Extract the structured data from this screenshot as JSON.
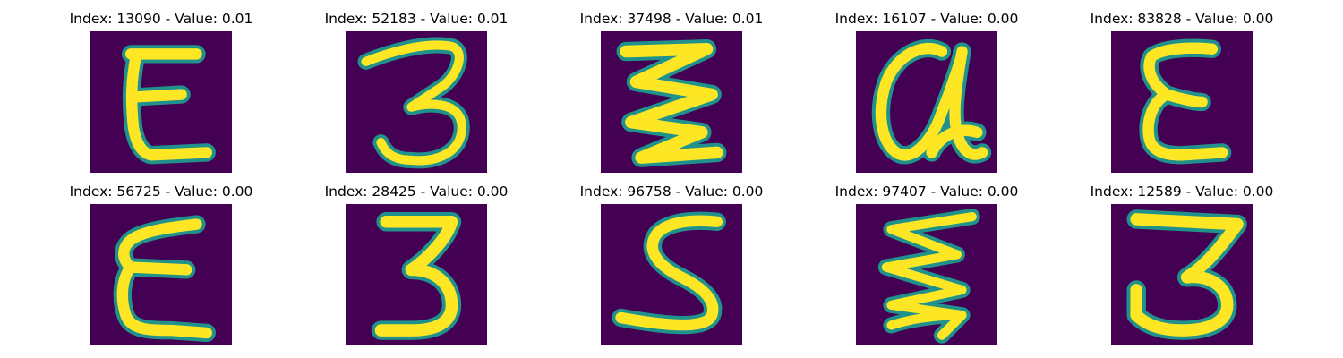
{
  "colors": {
    "background": "#440154",
    "stroke_high": "#fde725",
    "stroke_mid": "#35b779",
    "stroke_edge": "#21918c"
  },
  "panels": [
    {
      "title": "Index: 13090 - Value: 0.01",
      "glyph": "E"
    },
    {
      "title": "Index: 52183 - Value: 0.01",
      "glyph": "3"
    },
    {
      "title": "Index: 37498 - Value: 0.01",
      "glyph": "zigzag"
    },
    {
      "title": "Index: 16107 - Value: 0.00",
      "glyph": "a"
    },
    {
      "title": "Index: 83828 - Value: 0.00",
      "glyph": "E"
    },
    {
      "title": "Index: 56725 - Value: 0.00",
      "glyph": "E"
    },
    {
      "title": "Index: 28425 - Value: 0.00",
      "glyph": "3"
    },
    {
      "title": "Index: 96758 - Value: 0.00",
      "glyph": "S"
    },
    {
      "title": "Index: 97407 - Value: 0.00",
      "glyph": "zigzag"
    },
    {
      "title": "Index: 12589 - Value: 0.00",
      "glyph": "3"
    }
  ]
}
